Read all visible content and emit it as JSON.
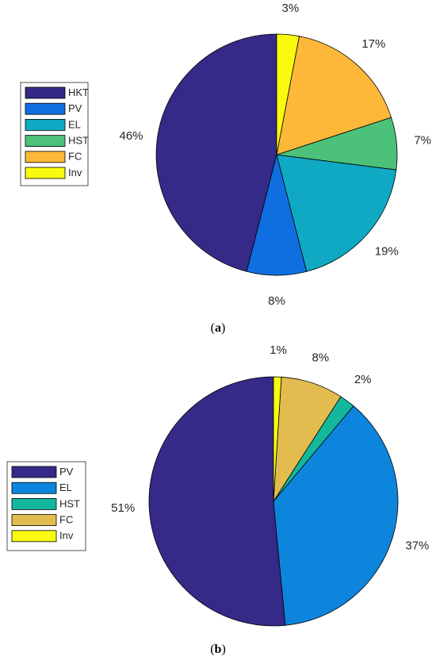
{
  "chart_data": [
    {
      "type": "pie",
      "caption": "a",
      "legend_placement": "left",
      "slices": [
        {
          "name": "HKT",
          "value": 46,
          "label": "46%",
          "color": "#352A87"
        },
        {
          "name": "PV",
          "value": 8,
          "label": "8%",
          "color": "#0F6FE0"
        },
        {
          "name": "EL",
          "value": 19,
          "label": "19%",
          "color": "#10A9C4"
        },
        {
          "name": "HST",
          "value": 7,
          "label": "7%",
          "color": "#4CC17A"
        },
        {
          "name": "FC",
          "value": 17,
          "label": "17%",
          "color": "#FDB83A"
        },
        {
          "name": "Inv",
          "value": 3,
          "label": "3%",
          "color": "#F9FB0E"
        }
      ]
    },
    {
      "type": "pie",
      "caption": "b",
      "legend_placement": "left",
      "slices": [
        {
          "name": "PV",
          "value": 51,
          "label": "51%",
          "color": "#352A87"
        },
        {
          "name": "EL",
          "value": 37,
          "label": "37%",
          "color": "#0D85DC"
        },
        {
          "name": "HST",
          "value": 2,
          "label": "2%",
          "color": "#13B89C"
        },
        {
          "name": "FC",
          "value": 8,
          "label": "8%",
          "color": "#E2BC4F"
        },
        {
          "name": "Inv",
          "value": 1,
          "label": "1%",
          "color": "#F9FB0E"
        }
      ]
    }
  ]
}
